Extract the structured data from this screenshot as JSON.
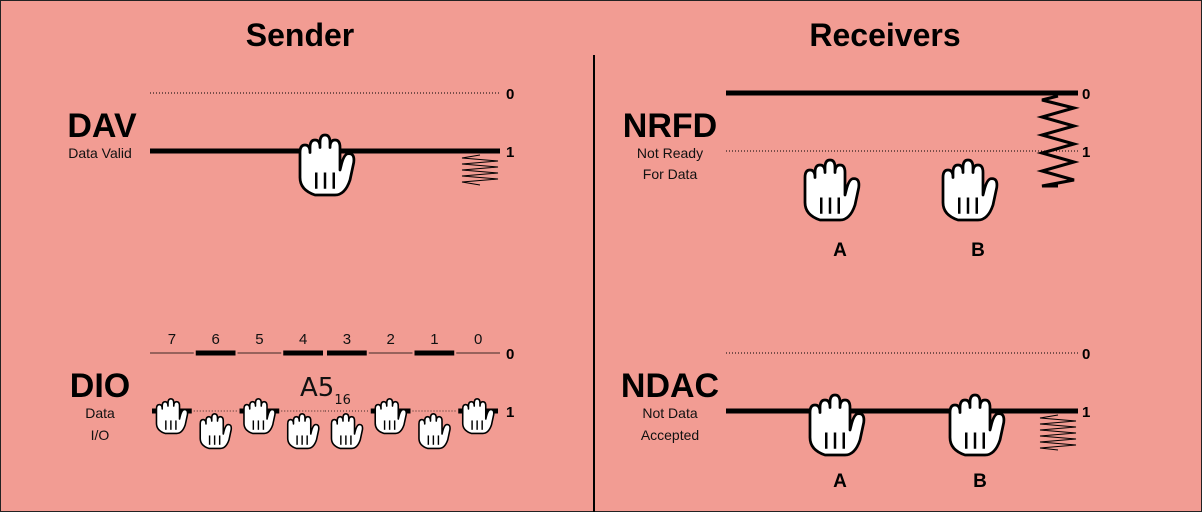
{
  "sender": {
    "title": "Sender",
    "dav": {
      "name": "DAV",
      "desc": "Data Valid"
    },
    "dio": {
      "name": "DIO",
      "desc_line1": "Data",
      "desc_line2": "I/O",
      "bit_labels": [
        "7",
        "6",
        "5",
        "4",
        "3",
        "2",
        "1",
        "0"
      ],
      "bit_levels": [
        1,
        0,
        1,
        0,
        0,
        1,
        0,
        1
      ],
      "value": "A5",
      "value_base": "16"
    }
  },
  "receivers": {
    "title": "Receivers",
    "nrfd": {
      "name": "NRFD",
      "desc_line1": "Not Ready",
      "desc_line2": "For Data"
    },
    "ndac": {
      "name": "NDAC",
      "desc_line1": "Not Data",
      "desc_line2": "Accepted"
    },
    "receiver_a": "A",
    "receiver_b": "B"
  },
  "levels": {
    "zero": "0",
    "one": "1"
  },
  "colors": {
    "background": "#f29c93",
    "line": "#000000",
    "hand_fill": "#ffffff"
  }
}
